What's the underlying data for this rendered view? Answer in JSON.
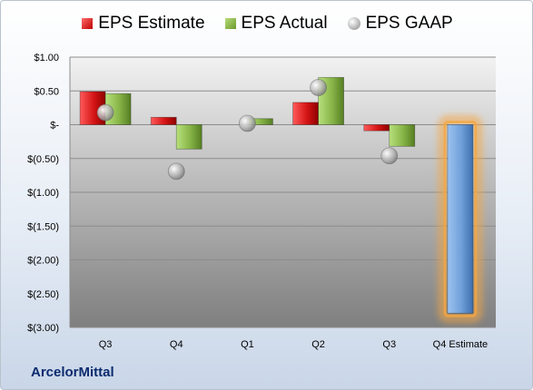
{
  "company": "ArcelorMittal",
  "chart_data": {
    "type": "bar",
    "categories": [
      "Q3",
      "Q4",
      "Q1",
      "Q2",
      "Q3",
      "Q4 Estimate"
    ],
    "series": [
      {
        "name": "EPS Estimate",
        "values": [
          0.49,
          0.11,
          null,
          0.33,
          -0.09,
          null
        ]
      },
      {
        "name": "EPS Actual",
        "values": [
          0.46,
          -0.36,
          0.09,
          0.7,
          -0.32,
          -2.79
        ]
      },
      {
        "name": "EPS GAAP",
        "values": [
          0.18,
          -0.69,
          0.02,
          0.55,
          -0.46,
          null
        ]
      }
    ],
    "yticks": [
      "$1.00",
      "$0.50",
      "$-",
      "$(0.50)",
      "$(1.00)",
      "$(1.50)",
      "$(2.00)",
      "$(2.50)",
      "$(3.00)"
    ],
    "ylim": [
      -3,
      1
    ],
    "grid": true,
    "legend": "top-center",
    "highlight_category": "Q4 Estimate",
    "colors": {
      "estimate": "#c00000",
      "actual": "#7aa83a",
      "gaap": "#a9a9a9",
      "forecast": "#6f9fd8",
      "glow": "#f5a640"
    }
  }
}
